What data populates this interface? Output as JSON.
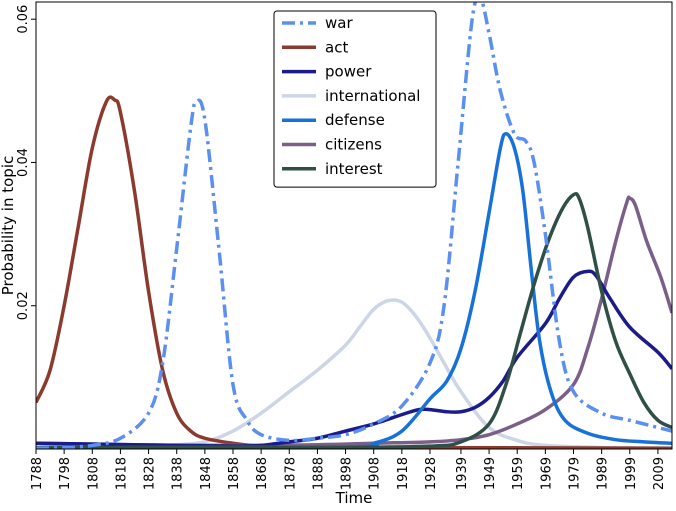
{
  "chart_data": {
    "type": "line",
    "xlabel": "Time",
    "ylabel": "Probability in topic",
    "xlim": [
      1788,
      2014
    ],
    "ylim": [
      0.0,
      0.0624
    ],
    "x_ticks": [
      1788,
      1798,
      1808,
      1818,
      1828,
      1838,
      1848,
      1858,
      1868,
      1878,
      1888,
      1898,
      1908,
      1918,
      1928,
      1939,
      1949,
      1959,
      1969,
      1979,
      1989,
      1999,
      2009
    ],
    "y_ticks": [
      0.02,
      0.04,
      0.06
    ],
    "y_tick_labels": [
      "0.02",
      "0.04",
      "0.06"
    ],
    "grid": false,
    "legend_position": "top-center",
    "series": [
      {
        "name": "war",
        "color": "#5b8ff0",
        "dash": "dashdot",
        "points": [
          [
            1788,
            0.0001
          ],
          [
            1798,
            0.0002
          ],
          [
            1808,
            0.0005
          ],
          [
            1818,
            0.0015
          ],
          [
            1828,
            0.005
          ],
          [
            1833,
            0.012
          ],
          [
            1838,
            0.028
          ],
          [
            1843,
            0.045
          ],
          [
            1845,
            0.0485
          ],
          [
            1848,
            0.046
          ],
          [
            1853,
            0.028
          ],
          [
            1858,
            0.009
          ],
          [
            1863,
            0.004
          ],
          [
            1868,
            0.002
          ],
          [
            1878,
            0.0012
          ],
          [
            1888,
            0.0015
          ],
          [
            1898,
            0.002
          ],
          [
            1908,
            0.0035
          ],
          [
            1918,
            0.006
          ],
          [
            1928,
            0.012
          ],
          [
            1933,
            0.02
          ],
          [
            1938,
            0.04
          ],
          [
            1943,
            0.06
          ],
          [
            1946,
            0.0628
          ],
          [
            1949,
            0.058
          ],
          [
            1953,
            0.05
          ],
          [
            1958,
            0.044
          ],
          [
            1962,
            0.043
          ],
          [
            1965,
            0.04
          ],
          [
            1969,
            0.03
          ],
          [
            1974,
            0.015
          ],
          [
            1979,
            0.008
          ],
          [
            1989,
            0.005
          ],
          [
            1999,
            0.004
          ],
          [
            2009,
            0.003
          ],
          [
            2014,
            0.0025
          ]
        ]
      },
      {
        "name": "act",
        "color": "#8b3a2e",
        "points": [
          [
            1788,
            0.0065
          ],
          [
            1793,
            0.011
          ],
          [
            1798,
            0.02
          ],
          [
            1803,
            0.031
          ],
          [
            1808,
            0.042
          ],
          [
            1813,
            0.0485
          ],
          [
            1816,
            0.0487
          ],
          [
            1818,
            0.047
          ],
          [
            1823,
            0.036
          ],
          [
            1828,
            0.022
          ],
          [
            1833,
            0.011
          ],
          [
            1838,
            0.005
          ],
          [
            1843,
            0.0025
          ],
          [
            1848,
            0.0015
          ],
          [
            1858,
            0.0008
          ],
          [
            1868,
            0.0004
          ],
          [
            1888,
            0.0002
          ],
          [
            1928,
            0.0002
          ],
          [
            2014,
            0.0001
          ]
        ]
      },
      {
        "name": "power",
        "color": "#1b1b8a",
        "points": [
          [
            1788,
            0.0008
          ],
          [
            1808,
            0.0007
          ],
          [
            1838,
            0.0005
          ],
          [
            1858,
            0.0004
          ],
          [
            1868,
            0.0005
          ],
          [
            1878,
            0.001
          ],
          [
            1888,
            0.0015
          ],
          [
            1898,
            0.0025
          ],
          [
            1908,
            0.0035
          ],
          [
            1918,
            0.0048
          ],
          [
            1924,
            0.0055
          ],
          [
            1928,
            0.0055
          ],
          [
            1934,
            0.0052
          ],
          [
            1939,
            0.0052
          ],
          [
            1944,
            0.0058
          ],
          [
            1949,
            0.0072
          ],
          [
            1954,
            0.0095
          ],
          [
            1959,
            0.0128
          ],
          [
            1969,
            0.0175
          ],
          [
            1974,
            0.021
          ],
          [
            1979,
            0.024
          ],
          [
            1984,
            0.0248
          ],
          [
            1987,
            0.0242
          ],
          [
            1992,
            0.021
          ],
          [
            1999,
            0.017
          ],
          [
            2009,
            0.0135
          ],
          [
            2014,
            0.0112
          ]
        ]
      },
      {
        "name": "international",
        "color": "#cdd6e6",
        "points": [
          [
            1788,
            0.0002
          ],
          [
            1818,
            0.0003
          ],
          [
            1838,
            0.0006
          ],
          [
            1848,
            0.001
          ],
          [
            1858,
            0.0025
          ],
          [
            1868,
            0.005
          ],
          [
            1878,
            0.008
          ],
          [
            1888,
            0.011
          ],
          [
            1898,
            0.0145
          ],
          [
            1903,
            0.017
          ],
          [
            1908,
            0.0195
          ],
          [
            1913,
            0.0207
          ],
          [
            1918,
            0.0205
          ],
          [
            1923,
            0.0185
          ],
          [
            1928,
            0.0155
          ],
          [
            1933,
            0.012
          ],
          [
            1939,
            0.008
          ],
          [
            1949,
            0.003
          ],
          [
            1959,
            0.0012
          ],
          [
            1969,
            0.0005
          ],
          [
            1989,
            0.0002
          ],
          [
            2014,
            0.0001
          ]
        ]
      },
      {
        "name": "defense",
        "color": "#1672d8",
        "points": [
          [
            1788,
            0.0002
          ],
          [
            1898,
            0.0003
          ],
          [
            1908,
            0.0008
          ],
          [
            1918,
            0.0025
          ],
          [
            1928,
            0.007
          ],
          [
            1934,
            0.0095
          ],
          [
            1939,
            0.014
          ],
          [
            1944,
            0.022
          ],
          [
            1949,
            0.033
          ],
          [
            1953,
            0.042
          ],
          [
            1955,
            0.044
          ],
          [
            1958,
            0.042
          ],
          [
            1961,
            0.036
          ],
          [
            1964,
            0.025
          ],
          [
            1967,
            0.015
          ],
          [
            1971,
            0.008
          ],
          [
            1976,
            0.004
          ],
          [
            1984,
            0.0022
          ],
          [
            1994,
            0.0013
          ],
          [
            2004,
            0.001
          ],
          [
            2014,
            0.0008
          ]
        ]
      },
      {
        "name": "citizens",
        "color": "#7a5f88",
        "points": [
          [
            1788,
            0.0008
          ],
          [
            1818,
            0.0006
          ],
          [
            1858,
            0.0005
          ],
          [
            1888,
            0.0006
          ],
          [
            1908,
            0.0008
          ],
          [
            1928,
            0.001
          ],
          [
            1939,
            0.0013
          ],
          [
            1949,
            0.002
          ],
          [
            1959,
            0.0035
          ],
          [
            1969,
            0.0055
          ],
          [
            1979,
            0.009
          ],
          [
            1984,
            0.014
          ],
          [
            1989,
            0.021
          ],
          [
            1994,
            0.029
          ],
          [
            1998,
            0.0345
          ],
          [
            1999,
            0.035
          ],
          [
            2001,
            0.034
          ],
          [
            2005,
            0.029
          ],
          [
            2010,
            0.024
          ],
          [
            2014,
            0.019
          ]
        ]
      },
      {
        "name": "interest",
        "color": "#2f4f47",
        "points": [
          [
            1788,
            0.0002
          ],
          [
            1888,
            0.0002
          ],
          [
            1928,
            0.0004
          ],
          [
            1939,
            0.001
          ],
          [
            1949,
            0.0035
          ],
          [
            1955,
            0.009
          ],
          [
            1960,
            0.016
          ],
          [
            1965,
            0.023
          ],
          [
            1970,
            0.029
          ],
          [
            1975,
            0.0335
          ],
          [
            1979,
            0.0355
          ],
          [
            1981,
            0.035
          ],
          [
            1984,
            0.031
          ],
          [
            1989,
            0.022
          ],
          [
            1994,
            0.015
          ],
          [
            1999,
            0.0105
          ],
          [
            2004,
            0.0065
          ],
          [
            2009,
            0.004
          ],
          [
            2014,
            0.003
          ]
        ]
      }
    ]
  }
}
